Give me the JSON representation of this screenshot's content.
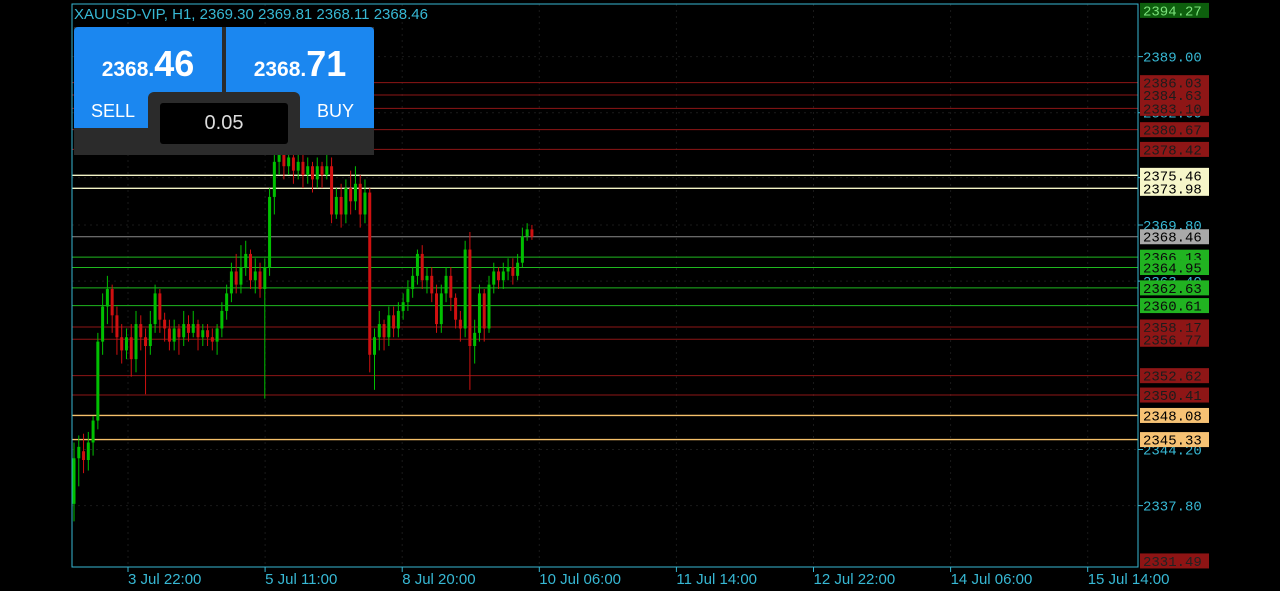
{
  "header": {
    "symbol": "XAUUSD-VIP",
    "timeframe": "H1",
    "ohlc": "2369.30 2369.81 2368.11 2368.46"
  },
  "trade_panel": {
    "sell": {
      "label": "SELL",
      "price_main": "2368.",
      "price_big": "46"
    },
    "buy": {
      "label": "BUY",
      "price_main": "2368.",
      "price_big": "71"
    },
    "lot": "0.05"
  },
  "colors": {
    "background": "#000000",
    "axis": "#37b8d4",
    "grid": "#1a1a1a",
    "bull": "#00c000",
    "bear": "#d01010",
    "green_line": "#1fb81f",
    "red_line": "#8e1616",
    "yellow_line": "#f2f2c4",
    "orange_line": "#f5c06a",
    "button": "#1b87f0"
  },
  "chart_data": {
    "type": "candlestick",
    "ylim": [
      2330.8,
      2395.0
    ],
    "price_ticks": [
      "2389.00",
      "2375.20",
      "2369.80",
      "2344.20",
      "2337.80"
    ],
    "time_ticks": [
      "3 Jul 22:00",
      "5 Jul 11:00",
      "8 Jul 20:00",
      "10 Jul 06:00",
      "11 Jul 14:00",
      "12 Jul 22:00",
      "14 Jul 06:00",
      "15 Jul 14:00"
    ],
    "hidden_tick_labels": [
      "2382.60",
      "2363.40"
    ],
    "top_label": {
      "value": "2394.27",
      "bg": "#0d5f0d",
      "fg": "#7be07b"
    },
    "bottom_label": {
      "value": "2331.49",
      "bg": "#8e1414",
      "fg": "#222222"
    },
    "current_price": {
      "value": "2368.46",
      "bg": "#a9a9a9",
      "fg": "#000000",
      "line": "#8a8a8a"
    },
    "levels": [
      {
        "value": "2386.03",
        "kind": "red"
      },
      {
        "value": "2384.63",
        "kind": "red"
      },
      {
        "value": "2383.10",
        "kind": "red"
      },
      {
        "value": "2380.67",
        "kind": "red"
      },
      {
        "value": "2378.42",
        "kind": "red"
      },
      {
        "value": "2375.46",
        "kind": "yellow"
      },
      {
        "value": "2373.98",
        "kind": "yellow"
      },
      {
        "value": "2366.13",
        "kind": "green"
      },
      {
        "value": "2364.95",
        "kind": "green"
      },
      {
        "value": "2362.63",
        "kind": "green"
      },
      {
        "value": "2360.61",
        "kind": "green"
      },
      {
        "value": "2358.17",
        "kind": "red"
      },
      {
        "value": "2356.77",
        "kind": "red"
      },
      {
        "value": "2352.62",
        "kind": "red"
      },
      {
        "value": "2350.41",
        "kind": "red"
      },
      {
        "value": "2348.08",
        "kind": "orange"
      },
      {
        "value": "2345.33",
        "kind": "orange"
      }
    ],
    "candles": [
      [
        2338.0,
        2343.2,
        2336.0,
        2345.0
      ],
      [
        2343.2,
        2344.5,
        2340.0,
        2345.8
      ],
      [
        2344.0,
        2343.0,
        2341.5,
        2346.0
      ],
      [
        2343.0,
        2345.0,
        2341.8,
        2346.2
      ],
      [
        2345.0,
        2347.5,
        2343.5,
        2348.0
      ],
      [
        2347.5,
        2356.5,
        2346.5,
        2357.5
      ],
      [
        2356.5,
        2360.5,
        2355.0,
        2362.0
      ],
      [
        2360.5,
        2362.5,
        2358.5,
        2364.0
      ],
      [
        2362.5,
        2359.5,
        2357.5,
        2363.0
      ],
      [
        2359.5,
        2357.0,
        2355.0,
        2360.5
      ],
      [
        2357.0,
        2355.5,
        2354.0,
        2358.5
      ],
      [
        2355.5,
        2357.0,
        2354.5,
        2358.0
      ],
      [
        2357.0,
        2354.5,
        2352.5,
        2358.5
      ],
      [
        2354.5,
        2358.5,
        2353.0,
        2360.0
      ],
      [
        2358.5,
        2357.0,
        2355.5,
        2359.5
      ],
      [
        2357.0,
        2356.0,
        2350.5,
        2358.0
      ],
      [
        2356.0,
        2358.5,
        2355.0,
        2360.0
      ],
      [
        2358.5,
        2362.0,
        2357.5,
        2363.0
      ],
      [
        2362.0,
        2359.0,
        2357.5,
        2362.5
      ],
      [
        2359.0,
        2358.0,
        2356.5,
        2359.8
      ],
      [
        2358.0,
        2356.5,
        2355.5,
        2359.0
      ],
      [
        2356.5,
        2358.0,
        2355.5,
        2359.0
      ],
      [
        2358.0,
        2357.0,
        2355.0,
        2358.5
      ],
      [
        2357.0,
        2358.5,
        2356.0,
        2360.0
      ],
      [
        2358.5,
        2357.5,
        2356.5,
        2359.5
      ],
      [
        2357.5,
        2358.5,
        2357.0,
        2360.0
      ],
      [
        2358.5,
        2357.0,
        2355.5,
        2359.0
      ],
      [
        2357.0,
        2357.8,
        2356.0,
        2358.5
      ],
      [
        2357.8,
        2357.0,
        2356.0,
        2358.5
      ],
      [
        2357.0,
        2356.5,
        2355.5,
        2358.0
      ],
      [
        2356.5,
        2358.0,
        2355.0,
        2358.5
      ],
      [
        2358.0,
        2360.0,
        2357.0,
        2361.0
      ],
      [
        2360.0,
        2362.0,
        2359.0,
        2363.0
      ],
      [
        2362.0,
        2364.5,
        2361.0,
        2365.5
      ],
      [
        2364.5,
        2363.0,
        2362.0,
        2366.5
      ],
      [
        2363.0,
        2365.0,
        2362.0,
        2367.5
      ],
      [
        2365.0,
        2366.5,
        2364.0,
        2368.0
      ],
      [
        2366.5,
        2363.5,
        2362.5,
        2367.0
      ],
      [
        2363.5,
        2364.5,
        2362.0,
        2366.0
      ],
      [
        2364.5,
        2362.5,
        2361.5,
        2365.5
      ],
      [
        2362.5,
        2365.0,
        2350.0,
        2366.0
      ],
      [
        2365.0,
        2373.0,
        2364.0,
        2374.0
      ],
      [
        2373.0,
        2377.0,
        2371.0,
        2380.0
      ],
      [
        2377.0,
        2378.0,
        2375.5,
        2379.0
      ],
      [
        2378.0,
        2376.5,
        2375.0,
        2379.5
      ],
      [
        2376.5,
        2377.5,
        2375.5,
        2379.0
      ],
      [
        2377.5,
        2376.0,
        2374.5,
        2378.5
      ],
      [
        2376.0,
        2377.0,
        2375.0,
        2378.0
      ],
      [
        2377.0,
        2375.5,
        2374.0,
        2378.0
      ],
      [
        2375.5,
        2376.5,
        2374.5,
        2377.5
      ],
      [
        2376.5,
        2375.0,
        2373.5,
        2377.0
      ],
      [
        2375.0,
        2376.5,
        2374.0,
        2377.5
      ],
      [
        2376.5,
        2375.5,
        2374.0,
        2377.0
      ],
      [
        2375.5,
        2376.5,
        2375.0,
        2378.0
      ],
      [
        2376.5,
        2371.0,
        2370.0,
        2377.5
      ],
      [
        2371.0,
        2373.0,
        2370.5,
        2374.0
      ],
      [
        2373.0,
        2371.0,
        2369.5,
        2374.5
      ],
      [
        2371.0,
        2374.0,
        2370.0,
        2375.0
      ],
      [
        2374.0,
        2372.5,
        2371.0,
        2376.0
      ],
      [
        2372.5,
        2374.5,
        2371.5,
        2376.5
      ],
      [
        2374.5,
        2371.0,
        2369.5,
        2375.5
      ],
      [
        2371.0,
        2373.5,
        2370.0,
        2375.0
      ],
      [
        2373.5,
        2355.0,
        2353.0,
        2374.0
      ],
      [
        2355.0,
        2357.0,
        2351.0,
        2358.0
      ],
      [
        2357.0,
        2358.5,
        2355.5,
        2360.0
      ],
      [
        2358.5,
        2357.0,
        2355.5,
        2359.0
      ],
      [
        2357.0,
        2359.5,
        2356.0,
        2360.5
      ],
      [
        2359.5,
        2358.0,
        2357.0,
        2360.5
      ],
      [
        2358.0,
        2360.0,
        2357.0,
        2361.0
      ],
      [
        2360.0,
        2361.0,
        2359.0,
        2362.0
      ],
      [
        2361.0,
        2362.5,
        2360.0,
        2363.5
      ],
      [
        2362.5,
        2364.0,
        2361.5,
        2365.0
      ],
      [
        2364.0,
        2366.5,
        2363.0,
        2367.0
      ],
      [
        2366.5,
        2363.5,
        2362.5,
        2367.5
      ],
      [
        2363.5,
        2364.0,
        2362.0,
        2365.0
      ],
      [
        2364.0,
        2362.0,
        2361.0,
        2365.0
      ],
      [
        2362.0,
        2358.5,
        2357.5,
        2363.0
      ],
      [
        2358.5,
        2362.0,
        2357.5,
        2363.0
      ],
      [
        2362.0,
        2364.0,
        2361.0,
        2365.0
      ],
      [
        2364.0,
        2361.5,
        2360.0,
        2365.0
      ],
      [
        2361.5,
        2359.0,
        2358.0,
        2362.0
      ],
      [
        2359.0,
        2358.0,
        2356.5,
        2360.0
      ],
      [
        2358.0,
        2367.0,
        2357.0,
        2368.0
      ],
      [
        2367.0,
        2356.0,
        2351.0,
        2369.0
      ],
      [
        2356.0,
        2357.5,
        2354.0,
        2359.0
      ],
      [
        2357.5,
        2362.0,
        2356.5,
        2363.0
      ],
      [
        2362.0,
        2358.0,
        2356.5,
        2362.5
      ],
      [
        2358.0,
        2363.0,
        2357.5,
        2364.0
      ],
      [
        2363.0,
        2364.5,
        2362.0,
        2365.5
      ],
      [
        2364.5,
        2363.5,
        2362.5,
        2365.0
      ],
      [
        2363.5,
        2364.5,
        2362.5,
        2365.5
      ],
      [
        2364.5,
        2365.0,
        2363.5,
        2366.0
      ],
      [
        2365.0,
        2364.0,
        2363.0,
        2366.0
      ],
      [
        2364.0,
        2365.5,
        2363.5,
        2366.5
      ],
      [
        2365.5,
        2368.5,
        2365.0,
        2369.5
      ],
      [
        2368.5,
        2369.3,
        2368.0,
        2370.0
      ],
      [
        2369.3,
        2368.46,
        2368.11,
        2369.81
      ]
    ]
  }
}
